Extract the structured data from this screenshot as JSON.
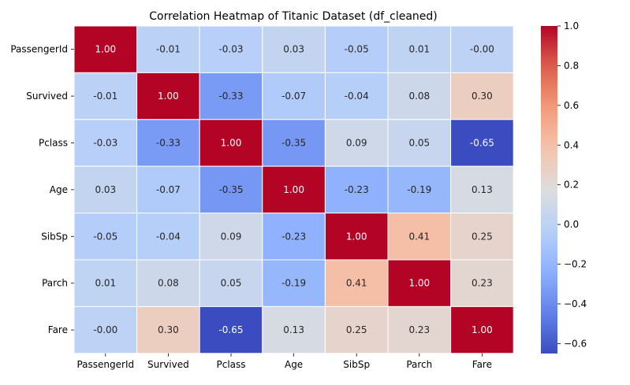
{
  "chart_data": {
    "type": "heatmap",
    "title": "Correlation Heatmap of Titanic Dataset (df_cleaned)",
    "xlabel": "",
    "ylabel": "",
    "rows": [
      "PassengerId",
      "Survived",
      "Pclass",
      "Age",
      "SibSp",
      "Parch",
      "Fare"
    ],
    "columns": [
      "PassengerId",
      "Survived",
      "Pclass",
      "Age",
      "SibSp",
      "Parch",
      "Fare"
    ],
    "values": [
      [
        1.0,
        -0.01,
        -0.03,
        0.03,
        -0.05,
        0.01,
        -0.0
      ],
      [
        -0.01,
        1.0,
        -0.33,
        -0.07,
        -0.04,
        0.08,
        0.3
      ],
      [
        -0.03,
        -0.33,
        1.0,
        -0.35,
        0.09,
        0.05,
        -0.65
      ],
      [
        0.03,
        -0.07,
        -0.35,
        1.0,
        -0.23,
        -0.19,
        0.13
      ],
      [
        -0.05,
        -0.04,
        0.09,
        -0.23,
        1.0,
        0.41,
        0.25
      ],
      [
        0.01,
        0.08,
        0.05,
        -0.19,
        0.41,
        1.0,
        0.23
      ],
      [
        -0.0,
        0.3,
        -0.65,
        0.13,
        0.25,
        0.23,
        1.0
      ]
    ],
    "value_labels": [
      [
        "1.00",
        "-0.01",
        "-0.03",
        "0.03",
        "-0.05",
        "0.01",
        "-0.00"
      ],
      [
        "-0.01",
        "1.00",
        "-0.33",
        "-0.07",
        "-0.04",
        "0.08",
        "0.30"
      ],
      [
        "-0.03",
        "-0.33",
        "1.00",
        "-0.35",
        "0.09",
        "0.05",
        "-0.65"
      ],
      [
        "0.03",
        "-0.07",
        "-0.35",
        "1.00",
        "-0.23",
        "-0.19",
        "0.13"
      ],
      [
        "-0.05",
        "-0.04",
        "0.09",
        "-0.23",
        "1.00",
        "0.41",
        "0.25"
      ],
      [
        "0.01",
        "0.08",
        "0.05",
        "-0.19",
        "0.41",
        "1.00",
        "0.23"
      ],
      [
        "-0.00",
        "0.30",
        "-0.65",
        "0.13",
        "0.25",
        "0.23",
        "1.00"
      ]
    ],
    "colormap": "coolwarm",
    "vmin": -0.65,
    "vmax": 1.0,
    "colorbar": {
      "ticks": [
        1.0,
        0.8,
        0.6,
        0.4,
        0.2,
        0.0,
        -0.2,
        -0.4,
        -0.6
      ],
      "tick_labels": [
        "1.0",
        "0.8",
        "0.6",
        "0.4",
        "0.2",
        "0.0",
        "−0.2",
        "−0.4",
        "−0.6"
      ],
      "placement": "right"
    },
    "grid": false,
    "cell_borders": "#ffffff"
  }
}
